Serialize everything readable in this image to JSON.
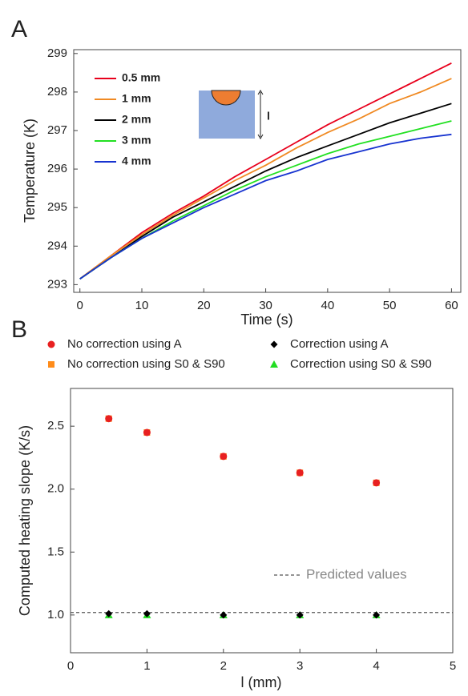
{
  "chart_data": [
    {
      "type": "line",
      "panel_label": "A",
      "x_label": "Time (s)",
      "y_label": "Temperature (K)",
      "x": [
        0,
        5,
        10,
        15,
        20,
        25,
        30,
        35,
        40,
        45,
        50,
        55,
        60
      ],
      "series": [
        {
          "name": "0.5 mm",
          "color": "#e8001c",
          "values": [
            293.15,
            293.75,
            294.35,
            294.85,
            295.3,
            295.8,
            296.25,
            296.7,
            297.15,
            297.55,
            297.95,
            298.35,
            298.75
          ]
        },
        {
          "name": "1 mm",
          "color": "#f08a23",
          "values": [
            293.15,
            293.75,
            294.3,
            294.8,
            295.25,
            295.7,
            296.1,
            296.55,
            296.95,
            297.3,
            297.7,
            298.0,
            298.35
          ]
        },
        {
          "name": "2 mm",
          "color": "#000000",
          "values": [
            293.15,
            293.7,
            294.25,
            294.75,
            295.15,
            295.55,
            295.95,
            296.3,
            296.6,
            296.9,
            297.2,
            297.45,
            297.7
          ]
        },
        {
          "name": "3 mm",
          "color": "#22e022",
          "values": [
            293.15,
            293.7,
            294.2,
            294.65,
            295.05,
            295.45,
            295.8,
            296.1,
            296.4,
            296.65,
            296.85,
            297.05,
            297.25
          ]
        },
        {
          "name": "4 mm",
          "color": "#1733d0",
          "values": [
            293.15,
            293.7,
            294.2,
            294.6,
            295.0,
            295.35,
            295.7,
            295.95,
            296.25,
            296.45,
            296.65,
            296.8,
            296.9
          ]
        }
      ],
      "xlim": [
        -1,
        61.5
      ],
      "ylim": [
        292.8,
        299.1
      ],
      "xticks": [
        0,
        10,
        20,
        30,
        40,
        50,
        60
      ],
      "yticks": [
        293,
        294,
        295,
        296,
        297,
        298,
        299
      ],
      "legend": "upper-left",
      "inset_label": "l"
    },
    {
      "type": "scatter",
      "panel_label": "B",
      "x_label": "l (mm)",
      "y_label": "Computed heating slope (K/s)",
      "x": [
        0.5,
        1,
        2,
        3,
        4
      ],
      "series": [
        {
          "name": "No correction using A",
          "color": "#e82020",
          "marker": "circle",
          "values": [
            2.56,
            2.45,
            2.26,
            2.13,
            2.05
          ]
        },
        {
          "name": "Correction using A",
          "color": "#000000",
          "marker": "diamond",
          "values": [
            1.01,
            1.01,
            1.0,
            1.0,
            1.0
          ]
        },
        {
          "name": "No correction using S0 & S90",
          "color": "#ff8c1a",
          "marker": "square",
          "values": [
            2.56,
            2.45,
            2.26,
            2.13,
            2.05
          ]
        },
        {
          "name": "Correction using S0 & S90",
          "color": "#22dd22",
          "marker": "triangle",
          "values": [
            1.0,
            1.0,
            1.0,
            1.0,
            1.0
          ]
        }
      ],
      "reference_line": {
        "value": 1.02,
        "label": "Predicted values",
        "color": "#555555"
      },
      "xlim": [
        0,
        5
      ],
      "ylim": [
        0.7,
        2.8
      ],
      "xticks": [
        0,
        1,
        2,
        3,
        4,
        5
      ],
      "yticks": [
        {
          "value": 1,
          "label": "1.0"
        },
        1.5,
        {
          "value": 2,
          "label": "2.0"
        },
        2.5
      ],
      "legend": "top"
    }
  ]
}
